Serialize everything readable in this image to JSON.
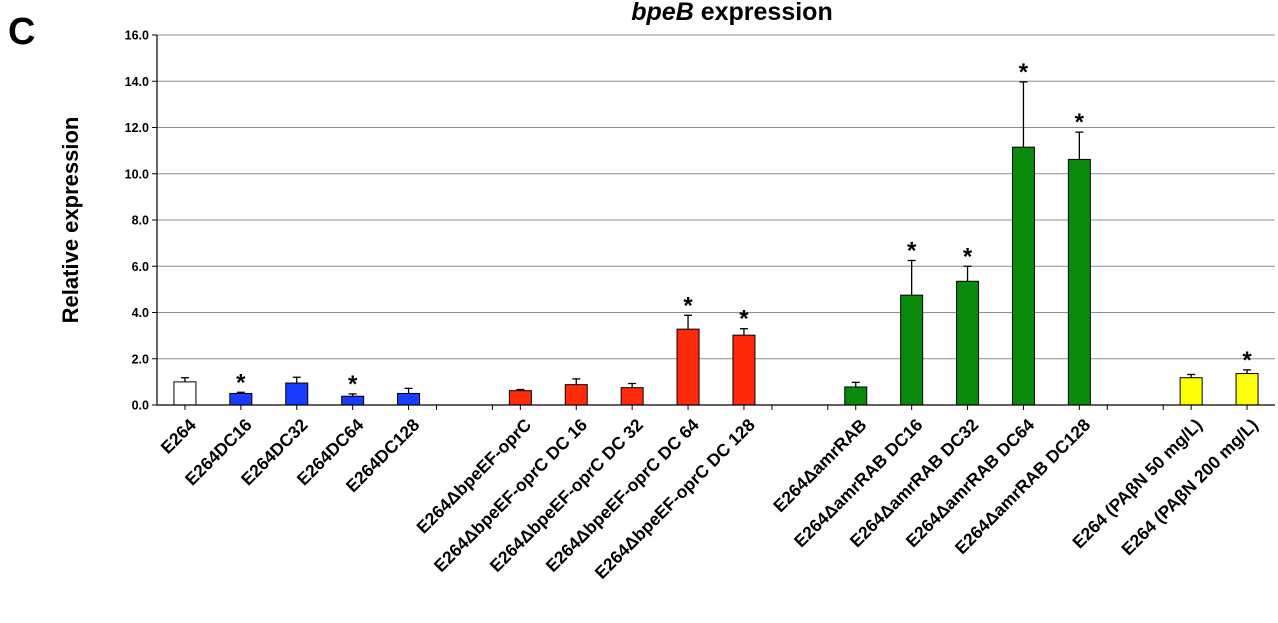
{
  "panel_label": "C",
  "chart_data": {
    "type": "bar",
    "title_italic": "bpeB",
    "title_rest": " expression",
    "xlabel": "",
    "ylabel": "Relative expression",
    "ylim": [
      0,
      16
    ],
    "yticks": [
      "0.0",
      "2.0",
      "4.0",
      "6.0",
      "8.0",
      "10.0",
      "12.0",
      "14.0",
      "16.0"
    ],
    "grid": true,
    "significance_marker": "*",
    "groups": [
      {
        "color": "#ffffff",
        "bars": [
          {
            "label": "E264",
            "value": 1.0,
            "error": 0.18,
            "sig": false
          },
          {
            "label": "E264DC16",
            "value": 0.5,
            "error": 0.05,
            "sig": true,
            "color": "#1a3cff"
          },
          {
            "label": "E264DC32",
            "value": 0.95,
            "error": 0.25,
            "sig": false,
            "color": "#1a3cff"
          },
          {
            "label": "E264DC64",
            "value": 0.38,
            "error": 0.1,
            "sig": true,
            "color": "#1a3cff"
          },
          {
            "label": "E264DC128",
            "value": 0.5,
            "error": 0.22,
            "sig": false,
            "color": "#1a3cff"
          }
        ]
      },
      {
        "color": "#ff2a0a",
        "bars": [
          {
            "label": "E264ΔbpeEF-oprC",
            "value": 0.62,
            "error": 0.05,
            "sig": false
          },
          {
            "label": "E264ΔbpeEF-oprC DC 16",
            "value": 0.88,
            "error": 0.25,
            "sig": false
          },
          {
            "label": "E264ΔbpeEF-oprC DC 32",
            "value": 0.75,
            "error": 0.18,
            "sig": false
          },
          {
            "label": "E264ΔbpeEF-oprC DC 64",
            "value": 3.28,
            "error": 0.6,
            "sig": true
          },
          {
            "label": "E264ΔbpeEF-oprC DC 128",
            "value": 3.02,
            "error": 0.28,
            "sig": true
          }
        ]
      },
      {
        "color": "#0a8a0a",
        "bars": [
          {
            "label": "E264ΔamrRAB",
            "value": 0.78,
            "error": 0.2,
            "sig": false
          },
          {
            "label": "E264ΔamrRAB DC16",
            "value": 4.75,
            "error": 1.5,
            "sig": true
          },
          {
            "label": "E264ΔamrRAB DC32",
            "value": 5.35,
            "error": 0.65,
            "sig": true
          },
          {
            "label": "E264ΔamrRAB DC64",
            "value": 11.15,
            "error": 2.82,
            "sig": true
          },
          {
            "label": "E264ΔamrRAB DC128",
            "value": 10.62,
            "error": 1.18,
            "sig": true
          }
        ]
      },
      {
        "color": "#ffff0a",
        "bars": [
          {
            "label": "E264 (PAβN 50 mg/L)",
            "value": 1.18,
            "error": 0.14,
            "sig": false
          },
          {
            "label": "E264 (PAβN 200 mg/L)",
            "value": 1.36,
            "error": 0.16,
            "sig": true
          }
        ]
      }
    ]
  }
}
